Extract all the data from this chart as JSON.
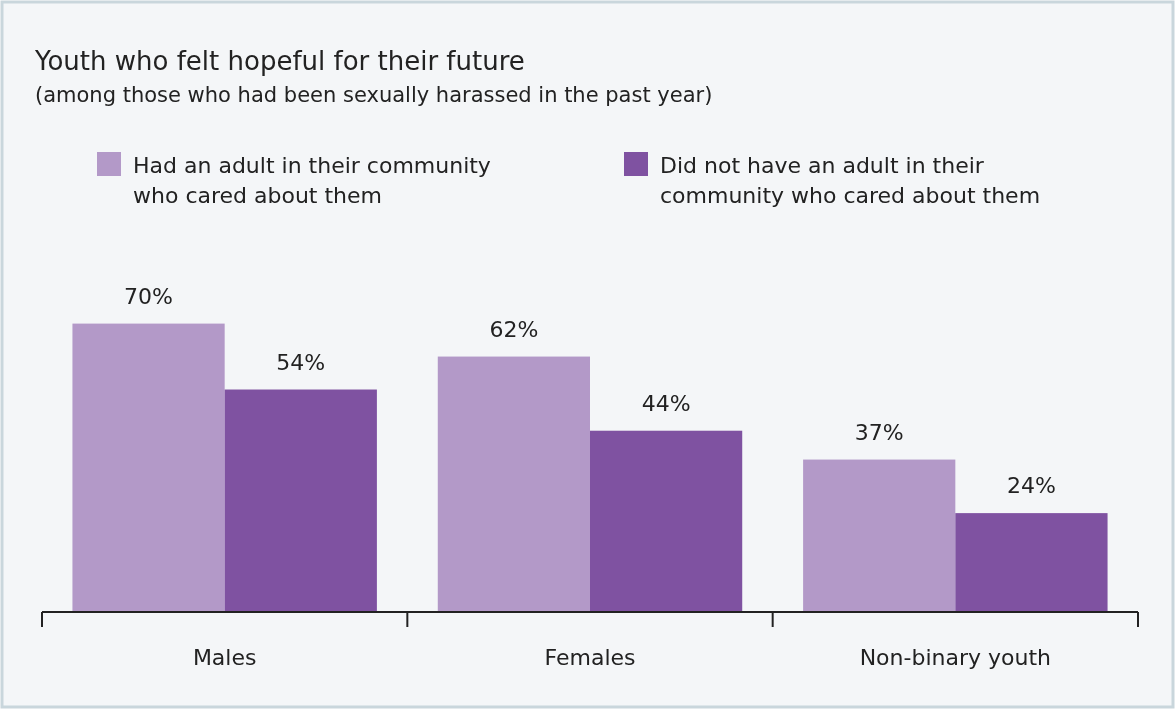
{
  "chart_data": {
    "type": "bar",
    "title": "Youth who felt hopeful for their future",
    "subtitle": "(among those who had been sexually harassed in the past year)",
    "categories": [
      "Males",
      "Females",
      "Non-binary youth"
    ],
    "series": [
      {
        "name": "Had an adult in their community who cared about them",
        "color": "#b399c8",
        "values": [
          70,
          62,
          37
        ],
        "value_labels": [
          "70%",
          "62%",
          "37%"
        ]
      },
      {
        "name": "Did not have an adult in their community who cared about them",
        "color": "#7f52a1",
        "values": [
          54,
          44,
          24
        ],
        "value_labels": [
          "54%",
          "44%",
          "24%"
        ]
      }
    ],
    "legend": "top left",
    "grid": false,
    "tick_labels": "x"
  }
}
